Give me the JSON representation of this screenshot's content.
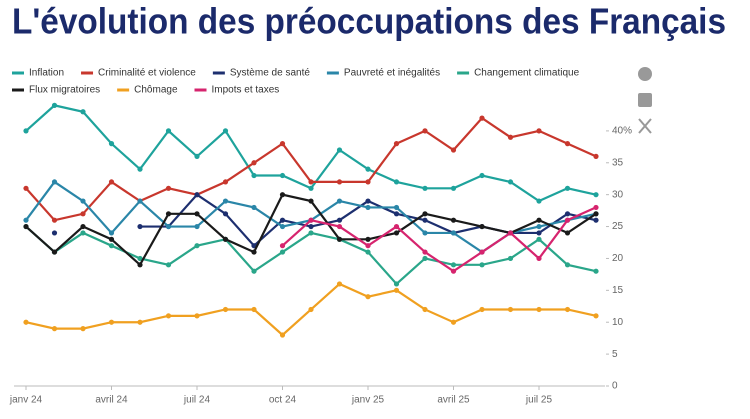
{
  "chart_data": {
    "type": "line",
    "title": "L'évolution des préoccupations des Français",
    "categories": [
      "janv 24",
      null,
      null,
      "avril 24",
      null,
      null,
      "juil 24",
      null,
      null,
      "oct 24",
      null,
      null,
      "janv 25",
      null,
      null,
      "avril 25",
      null,
      null,
      "juil 25",
      null,
      null
    ],
    "series": [
      {
        "name": "Inflation",
        "color": "#1ea39c",
        "values": [
          40,
          44,
          43,
          38,
          34,
          40,
          36,
          40,
          33,
          33,
          31,
          37,
          34,
          32,
          31,
          31,
          33,
          32,
          29,
          31,
          30
        ]
      },
      {
        "name": "Criminalité et violence",
        "color": "#c8372d",
        "values": [
          31,
          26,
          27,
          32,
          29,
          31,
          30,
          32,
          35,
          38,
          32,
          32,
          32,
          38,
          40,
          37,
          42,
          39,
          40,
          38,
          36
        ]
      },
      {
        "name": "Système de santé",
        "color": "#1d2f6f",
        "values": [
          null,
          24,
          null,
          null,
          25,
          25,
          30,
          27,
          22,
          26,
          25,
          26,
          29,
          27,
          26,
          24,
          25,
          24,
          24,
          27,
          26
        ]
      },
      {
        "name": "Pauvreté et inégalités",
        "color": "#2a86a8",
        "values": [
          26,
          32,
          29,
          24,
          29,
          25,
          25,
          29,
          28,
          25,
          26,
          29,
          28,
          28,
          24,
          24,
          21,
          24,
          25,
          26,
          27
        ]
      },
      {
        "name": "Changement climatique",
        "color": "#2aa68a",
        "values": [
          25,
          21,
          24,
          22,
          20,
          19,
          22,
          23,
          18,
          21,
          24,
          23,
          21,
          16,
          20,
          19,
          19,
          20,
          23,
          19,
          18
        ]
      },
      {
        "name": "Flux migratoires",
        "color": "#1a1a1a",
        "values": [
          25,
          21,
          25,
          23,
          19,
          27,
          27,
          23,
          21,
          30,
          29,
          23,
          23,
          24,
          27,
          26,
          25,
          24,
          26,
          24,
          27
        ]
      },
      {
        "name": "Chômage",
        "color": "#f0a020",
        "values": [
          10,
          9,
          9,
          10,
          10,
          11,
          11,
          12,
          12,
          8,
          12,
          16,
          14,
          15,
          12,
          10,
          12,
          12,
          12,
          12,
          11
        ]
      },
      {
        "name": "Impots et taxes",
        "color": "#d6246e",
        "values": [
          null,
          null,
          null,
          null,
          null,
          null,
          null,
          null,
          null,
          22,
          26,
          25,
          22,
          25,
          21,
          18,
          21,
          24,
          20,
          26,
          28
        ]
      }
    ],
    "ylim": [
      0,
      45
    ],
    "yticks": [
      0,
      5,
      10,
      15,
      20,
      25,
      30,
      35,
      {
        "value": 40,
        "label": "40%"
      }
    ]
  }
}
